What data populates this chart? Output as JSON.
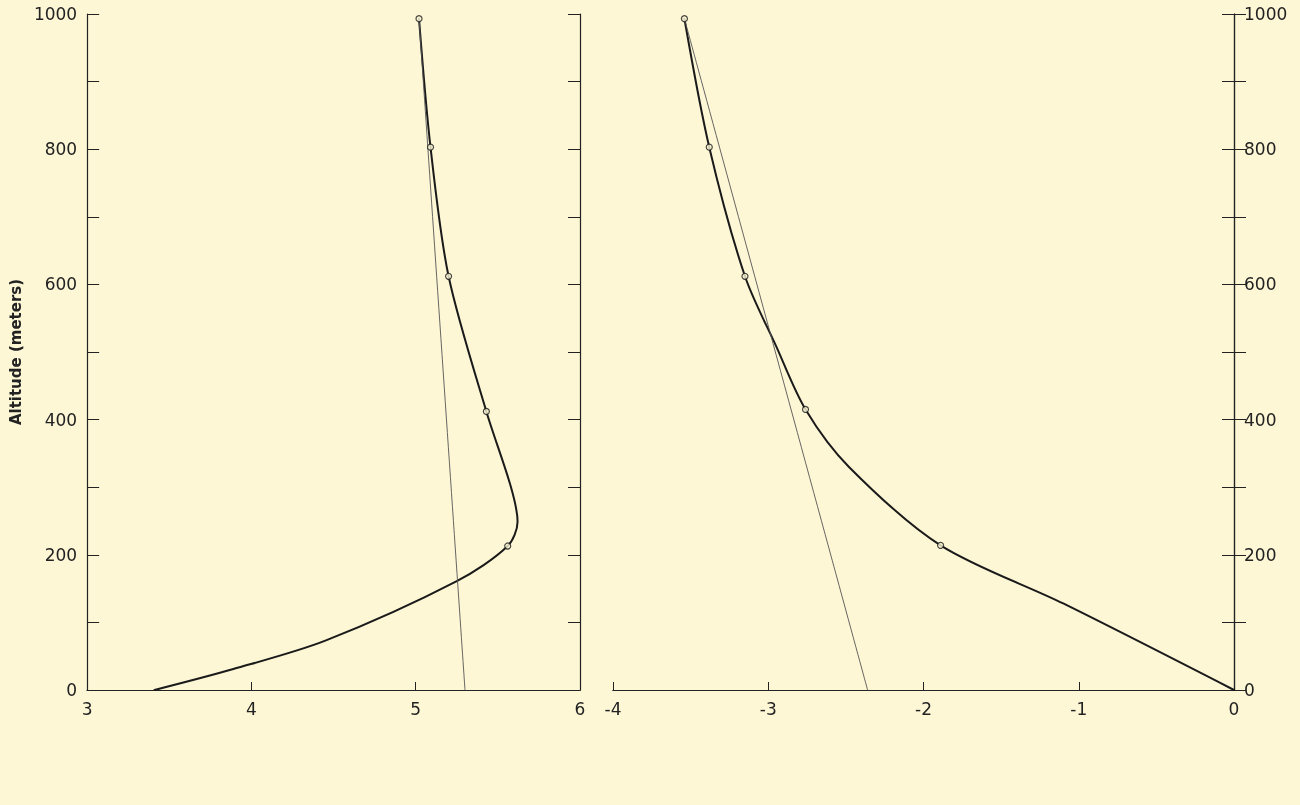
{
  "chart_data": [
    {
      "type": "line",
      "ylabel": "Altitude (meters)",
      "xlim": [
        3,
        6
      ],
      "xticks": [
        3,
        4,
        5,
        6
      ],
      "ylim": [
        0,
        1000
      ],
      "yticks": [
        0,
        {
          "value": 100,
          "label": null
        },
        200,
        {
          "value": 300,
          "label": null
        },
        400,
        {
          "value": 500,
          "label": null
        },
        600,
        {
          "value": 700,
          "label": null
        },
        800,
        {
          "value": 900,
          "label": null
        },
        1000
      ],
      "grid": false,
      "series": [
        {
          "color": "#1a1a1a",
          "marker": "none",
          "x": [
            3.41,
            3.89,
            4.45,
            5.25,
            5.56,
            5.62,
            5.58,
            5.43,
            5.2,
            5.09,
            5.02
          ],
          "values": [
            0,
            31,
            73,
            161,
            213,
            249,
            300,
            412,
            612,
            803,
            993
          ]
        },
        {
          "type": "scatter",
          "color": "#1a1a1a",
          "marker": "circle",
          "x": [
            5.56,
            5.43,
            5.2,
            5.09,
            5.02
          ],
          "values": [
            213,
            412,
            612,
            803,
            993
          ]
        },
        {
          "color": "#555555",
          "marker": "none",
          "x": [
            5.3,
            5.02
          ],
          "values": [
            0,
            993
          ]
        }
      ]
    },
    {
      "type": "line",
      "xlim": [
        -4,
        0
      ],
      "xticks": [
        -4,
        -3,
        -2,
        -1,
        0
      ],
      "ylim": [
        0,
        1000
      ],
      "yticks": [
        0,
        {
          "value": 100,
          "label": null
        },
        200,
        {
          "value": 300,
          "label": null
        },
        400,
        {
          "value": 500,
          "label": null
        },
        600,
        {
          "value": 700,
          "label": null
        },
        800,
        {
          "value": 900,
          "label": null
        },
        1000
      ],
      "grid": false,
      "series": [
        {
          "color": "#1a1a1a",
          "marker": "none",
          "x": [
            0,
            -1.1,
            -1.89,
            -2.48,
            -2.76,
            -2.95,
            -3.15,
            -3.38,
            -3.54
          ],
          "values": [
            0,
            128,
            214,
            330,
            415,
            509,
            612,
            803,
            993
          ]
        },
        {
          "type": "scatter",
          "color": "#1a1a1a",
          "marker": "circle",
          "x": [
            -1.89,
            -2.76,
            -3.15,
            -3.38,
            -3.54
          ],
          "values": [
            214,
            415,
            612,
            803,
            993
          ]
        },
        {
          "color": "#555555",
          "marker": "none",
          "x": [
            -2.36,
            -3.54
          ],
          "values": [
            0,
            993
          ]
        }
      ]
    }
  ]
}
